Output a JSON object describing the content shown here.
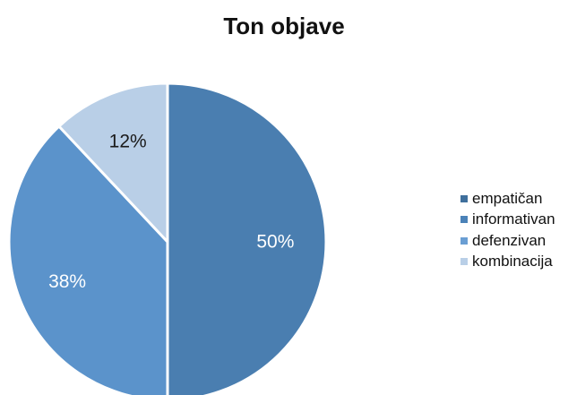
{
  "chart_data": {
    "type": "pie",
    "title": "Ton objave",
    "categories": [
      "empatičan",
      "informativan",
      "defenzivan",
      "kombinacija"
    ],
    "values": [
      50,
      0,
      38,
      12
    ],
    "data_labels": [
      "50%",
      "",
      "38%",
      "12%"
    ],
    "colors": [
      "#4a7eb0",
      "#4a7eb0",
      "#5b93cb",
      "#b9cfe7"
    ],
    "legend_colors": [
      "#3f6f9c",
      "#4b82b8",
      "#6a9ed3",
      "#b9cfe7"
    ],
    "label_colors": [
      "#ffffff",
      "#ffffff",
      "#ffffff",
      "#1a1a1a"
    ],
    "start_angle_deg": 0,
    "direction": "clockwise",
    "legend_position": "right"
  }
}
